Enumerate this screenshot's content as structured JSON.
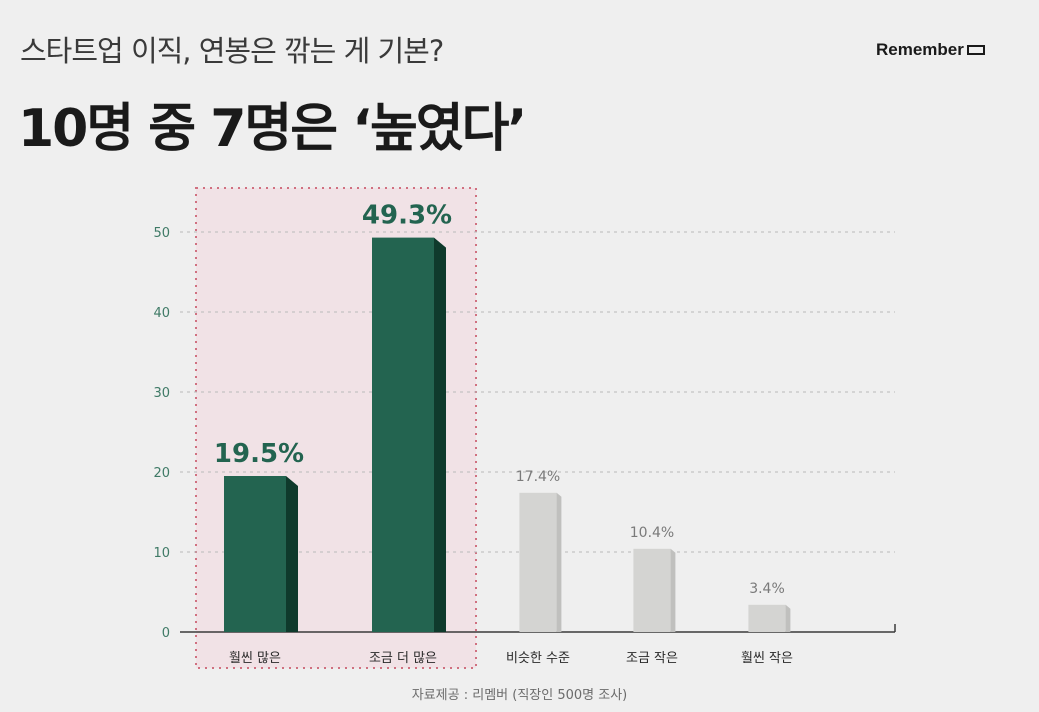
{
  "header": {
    "subtitle": "스타트업 이직, 연봉은 깎는 게 기본?",
    "title": "10명 중 7명은 ‘높였다’",
    "brand": "Remember"
  },
  "footer": {
    "source": "자료제공 : 리멤버 (직장인 500명 조사)"
  },
  "colors": {
    "highlight_bar": "#236450",
    "highlight_bar_side": "#0f3a2c",
    "muted_bar": "#d4d4d2",
    "muted_bar_side": "#c0c0be",
    "axis_text": "#3f7a66",
    "highlight_box": "#f1e2e6",
    "highlight_border": "#d07080"
  },
  "chart_data": {
    "type": "bar",
    "categories": [
      "훨씬 많은",
      "조금 더 많은",
      "비슷한 수준",
      "조금 작은",
      "훨씬 작은"
    ],
    "values": [
      19.5,
      49.3,
      17.4,
      10.4,
      3.4
    ],
    "data_labels": [
      "19.5%",
      "49.3%",
      "17.4%",
      "10.4%",
      "3.4%"
    ],
    "highlighted": [
      true,
      true,
      false,
      false,
      false
    ],
    "ylim": [
      0,
      50
    ],
    "yticks": [
      0,
      10,
      20,
      30,
      40,
      50
    ],
    "grid": true,
    "title": "",
    "xlabel": "",
    "ylabel": ""
  }
}
